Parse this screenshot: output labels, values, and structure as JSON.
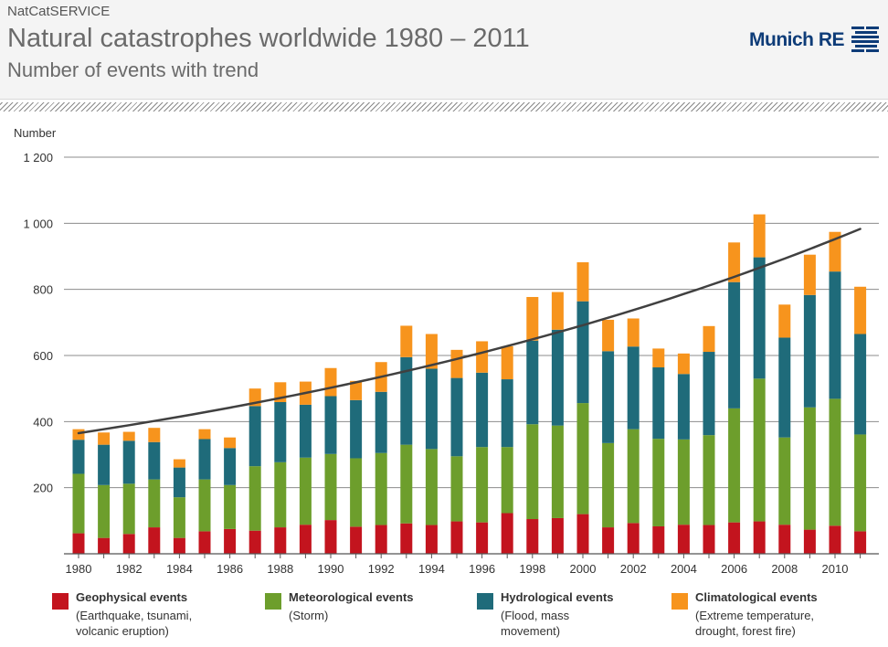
{
  "header": {
    "pre_title": "NatCatSERVICE",
    "title": "Natural catastrophes worldwide 1980 – 2011",
    "subtitle": "Number of events with trend",
    "logo_text": "Munich RE"
  },
  "colors": {
    "geophysical": "#c3141e",
    "meteorological": "#6d9e2c",
    "hydrological": "#1f6b7a",
    "climatological": "#f7941d",
    "trend": "#404040",
    "gridline": "#8c8c8c"
  },
  "legend": [
    {
      "key": "geophysical",
      "title": "Geophysical events",
      "desc_lines": [
        "(Earthquake, tsunami,",
        "volcanic eruption)"
      ]
    },
    {
      "key": "meteorological",
      "title": "Meteorological events",
      "desc_lines": [
        "(Storm)"
      ]
    },
    {
      "key": "hydrological",
      "title": "Hydrological events",
      "desc_lines": [
        "(Flood, mass",
        "movement)"
      ]
    },
    {
      "key": "climatological",
      "title": "Climatological events",
      "desc_lines": [
        "(Extreme temperature,",
        "drought, forest fire)"
      ]
    }
  ],
  "chart_data": {
    "type": "bar",
    "stacked": true,
    "ylabel": "Number",
    "ylim": [
      0,
      1200
    ],
    "yticks": [
      200,
      400,
      600,
      800,
      1000,
      1200
    ],
    "ytick_labels": [
      "200",
      "400",
      "600",
      "800",
      "1 000",
      "1 200"
    ],
    "grid": true,
    "categories": [
      1980,
      1981,
      1982,
      1983,
      1984,
      1985,
      1986,
      1987,
      1988,
      1989,
      1990,
      1991,
      1992,
      1993,
      1994,
      1995,
      1996,
      1997,
      1998,
      1999,
      2000,
      2001,
      2002,
      2003,
      2004,
      2005,
      2006,
      2007,
      2008,
      2009,
      2010,
      2011
    ],
    "xtick_labels": [
      "1980",
      "",
      "1982",
      "",
      "1984",
      "",
      "1986",
      "",
      "1988",
      "",
      "1990",
      "",
      "1992",
      "",
      "1994",
      "",
      "1996",
      "",
      "1998",
      "",
      "2000",
      "",
      "2002",
      "",
      "2004",
      "",
      "2006",
      "",
      "2008",
      "",
      "2010",
      ""
    ],
    "series": [
      {
        "name": "Geophysical events",
        "key": "geophysical",
        "values": [
          62,
          48,
          60,
          80,
          48,
          68,
          75,
          70,
          80,
          88,
          102,
          82,
          87,
          92,
          87,
          98,
          95,
          123,
          105,
          108,
          120,
          80,
          93,
          83,
          88,
          87,
          95,
          98,
          88,
          73,
          85,
          68
        ]
      },
      {
        "name": "Meteorological events",
        "key": "meteorological",
        "values": [
          180,
          160,
          152,
          145,
          123,
          157,
          133,
          195,
          197,
          203,
          200,
          207,
          218,
          238,
          230,
          197,
          228,
          200,
          287,
          280,
          336,
          255,
          284,
          265,
          258,
          272,
          345,
          432,
          264,
          370,
          384,
          293
        ]
      },
      {
        "name": "Hydrological events",
        "key": "hydrological",
        "values": [
          103,
          122,
          130,
          113,
          90,
          122,
          112,
          182,
          182,
          160,
          175,
          176,
          185,
          265,
          243,
          237,
          225,
          205,
          253,
          290,
          308,
          278,
          250,
          216,
          198,
          252,
          382,
          367,
          302,
          340,
          385,
          304
        ]
      },
      {
        "name": "Climatological events",
        "key": "climatological",
        "values": [
          32,
          37,
          27,
          43,
          25,
          30,
          32,
          53,
          60,
          70,
          85,
          58,
          90,
          95,
          105,
          85,
          95,
          100,
          132,
          114,
          118,
          95,
          85,
          57,
          62,
          78,
          120,
          130,
          100,
          122,
          120,
          143
        ]
      }
    ],
    "trend": {
      "start": [
        1980,
        365
      ],
      "end": [
        2011,
        983
      ]
    }
  }
}
